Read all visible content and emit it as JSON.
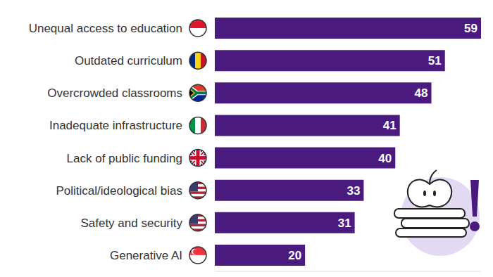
{
  "chart_data": {
    "type": "bar",
    "orientation": "horizontal",
    "categories": [
      "Unequal access to education",
      "Outdated curriculum",
      "Overcrowded classrooms",
      "Inadequate infrastructure",
      "Lack of public funding",
      "Political/ideological bias",
      "Safety and security",
      "Generative AI"
    ],
    "values": [
      59,
      51,
      48,
      41,
      40,
      33,
      31,
      20
    ],
    "color": "#4b1a7f",
    "xlim": [
      0,
      59
    ],
    "data_labels": true,
    "tick_labels": "y",
    "grid": false
  }
}
